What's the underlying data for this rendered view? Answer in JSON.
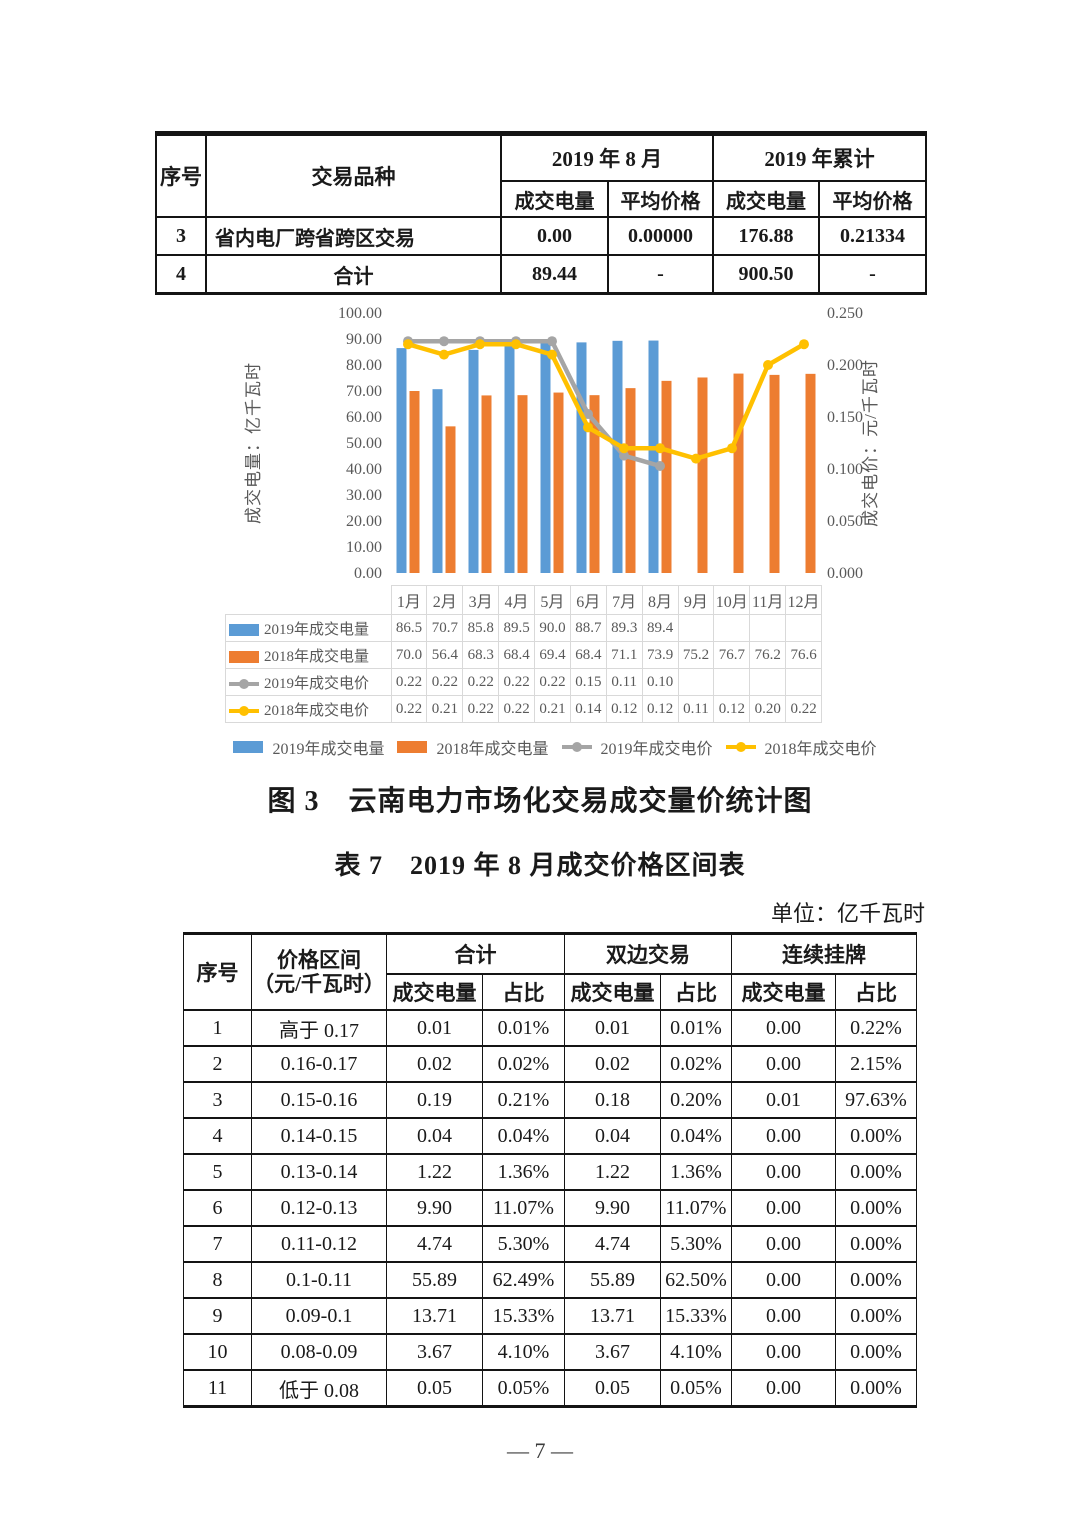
{
  "top_table": {
    "headers": {
      "seq": "序号",
      "type": "交易品种",
      "group_month": "2019 年 8 月",
      "group_cumulative": "2019 年累计",
      "sub_volume": "成交电量",
      "sub_price": "平均价格"
    },
    "rows": [
      {
        "seq": "3",
        "type": "省内电厂跨省跨区交易",
        "month_volume": "0.00",
        "month_price": "0.00000",
        "cum_volume": "176.88",
        "cum_price": "0.21334"
      },
      {
        "seq": "4",
        "type": "合计",
        "month_volume": "89.44",
        "month_price": "-",
        "cum_volume": "900.50",
        "cum_price": "-"
      }
    ]
  },
  "chart_data": {
    "type": "combo",
    "categories": [
      "1月",
      "2月",
      "3月",
      "4月",
      "5月",
      "6月",
      "7月",
      "8月",
      "9月",
      "10月",
      "11月",
      "12月"
    ],
    "series": [
      {
        "name": "2019年成交电量",
        "kind": "bar",
        "axis": "left",
        "color": "#5B9BD5",
        "values": [
          86.5,
          70.7,
          85.8,
          89.5,
          90.0,
          88.7,
          89.3,
          89.4
        ]
      },
      {
        "name": "2018年成交电量",
        "kind": "bar",
        "axis": "left",
        "color": "#ED7D31",
        "values": [
          70.0,
          56.4,
          68.3,
          68.4,
          69.4,
          68.4,
          71.1,
          73.9,
          75.2,
          76.7,
          76.2,
          76.6
        ]
      },
      {
        "name": "2019年成交电价",
        "kind": "line",
        "axis": "right",
        "color": "#A5A5A5",
        "values": [
          0.22,
          0.22,
          0.22,
          0.22,
          0.22,
          0.15,
          0.11,
          0.1
        ]
      },
      {
        "name": "2018年成交电价",
        "kind": "line",
        "axis": "right",
        "color": "#FFC000",
        "values": [
          0.22,
          0.21,
          0.22,
          0.22,
          0.21,
          0.14,
          0.12,
          0.12,
          0.11,
          0.12,
          0.2,
          0.22
        ]
      }
    ],
    "left_axis": {
      "title": "成交电量：亿千瓦时",
      "min": 0,
      "max": 100,
      "ticks": [
        "0.00",
        "10.00",
        "20.00",
        "30.00",
        "40.00",
        "50.00",
        "60.00",
        "70.00",
        "80.00",
        "90.00",
        "100.00"
      ]
    },
    "right_axis": {
      "title": "成交电价：元/千瓦时",
      "min": 0,
      "max": 0.25,
      "ticks": [
        "0.000",
        "0.050",
        "0.100",
        "0.150",
        "0.200",
        "0.250"
      ]
    },
    "data_table_visible": true,
    "legend_position": "bottom",
    "grid": false
  },
  "figure_caption": "图 3　云南电力市场化交易成交量价统计图",
  "table7": {
    "caption": "表 7　2019 年 8 月成交价格区间表",
    "unit_label": "单位：亿千瓦时",
    "headers": {
      "seq": "序号",
      "range_line1": "价格区间",
      "range_line2": "（元/千瓦时）",
      "group_total": "合计",
      "group_bilateral": "双边交易",
      "group_listing": "连续挂牌",
      "sub_volume": "成交电量",
      "sub_share": "占比"
    },
    "rows": [
      [
        "1",
        "高于 0.17",
        "0.01",
        "0.01%",
        "0.01",
        "0.01%",
        "0.00",
        "0.22%"
      ],
      [
        "2",
        "0.16-0.17",
        "0.02",
        "0.02%",
        "0.02",
        "0.02%",
        "0.00",
        "2.15%"
      ],
      [
        "3",
        "0.15-0.16",
        "0.19",
        "0.21%",
        "0.18",
        "0.20%",
        "0.01",
        "97.63%"
      ],
      [
        "4",
        "0.14-0.15",
        "0.04",
        "0.04%",
        "0.04",
        "0.04%",
        "0.00",
        "0.00%"
      ],
      [
        "5",
        "0.13-0.14",
        "1.22",
        "1.36%",
        "1.22",
        "1.36%",
        "0.00",
        "0.00%"
      ],
      [
        "6",
        "0.12-0.13",
        "9.90",
        "11.07%",
        "9.90",
        "11.07%",
        "0.00",
        "0.00%"
      ],
      [
        "7",
        "0.11-0.12",
        "4.74",
        "5.30%",
        "4.74",
        "5.30%",
        "0.00",
        "0.00%"
      ],
      [
        "8",
        "0.1-0.11",
        "55.89",
        "62.49%",
        "55.89",
        "62.50%",
        "0.00",
        "0.00%"
      ],
      [
        "9",
        "0.09-0.1",
        "13.71",
        "15.33%",
        "13.71",
        "15.33%",
        "0.00",
        "0.00%"
      ],
      [
        "10",
        "0.08-0.09",
        "3.67",
        "4.10%",
        "3.67",
        "4.10%",
        "0.00",
        "0.00%"
      ],
      [
        "11",
        "低于 0.08",
        "0.05",
        "0.05%",
        "0.05",
        "0.05%",
        "0.00",
        "0.00%"
      ]
    ]
  },
  "footer": {
    "page_number": "— 7 —"
  }
}
